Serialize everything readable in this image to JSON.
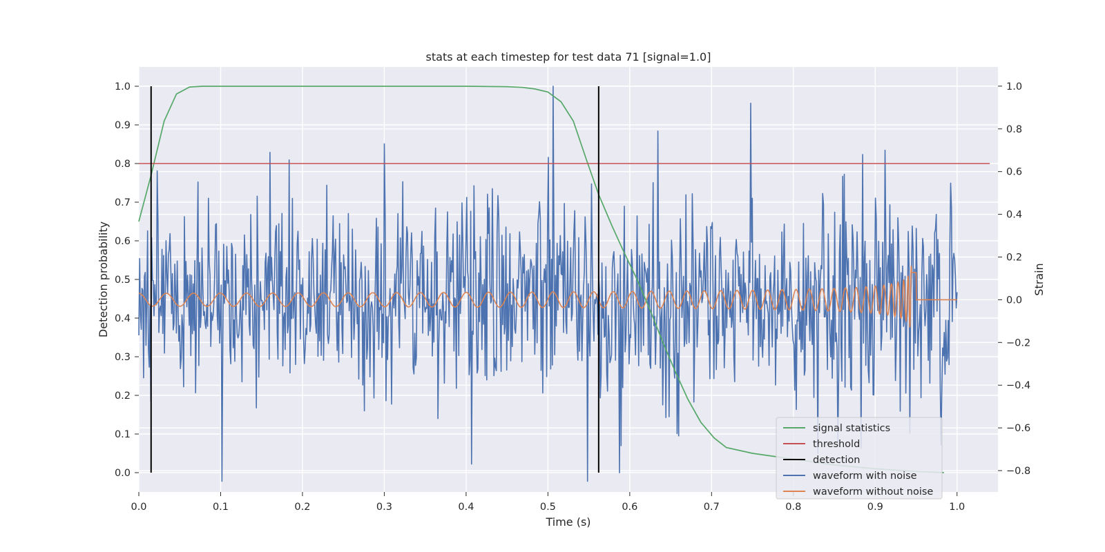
{
  "chart_data": {
    "type": "line",
    "title": "stats at each timestep for test data 71 [signal=1.0]",
    "xlabel": "Time (s)",
    "ylabel_left": "Detection probability",
    "ylabel_right": "Strain",
    "xlim": [
      0.0,
      1.05
    ],
    "ylim_left": [
      -0.05,
      1.05
    ],
    "ylim_right": [
      -0.9,
      1.09
    ],
    "x_ticks": [
      "0.0",
      "0.1",
      "0.2",
      "0.3",
      "0.4",
      "0.5",
      "0.6",
      "0.7",
      "0.8",
      "0.9",
      "1.0"
    ],
    "y_ticks_left": [
      "0.0",
      "0.1",
      "0.2",
      "0.3",
      "0.4",
      "0.5",
      "0.6",
      "0.7",
      "0.8",
      "0.9",
      "1.0"
    ],
    "y_ticks_right": [
      "−0.8",
      "−0.6",
      "−0.4",
      "−0.2",
      "0.0",
      "0.2",
      "0.4",
      "0.6",
      "0.8",
      "1.0"
    ],
    "grid": true,
    "legend_position": "lower-right",
    "series": [
      {
        "name": "signal statistics",
        "axis": "left",
        "color": "#55a868",
        "x": [
          0.0,
          0.015,
          0.031,
          0.046,
          0.062,
          0.078,
          0.093,
          0.109,
          0.125,
          0.2,
          0.3,
          0.4,
          0.45,
          0.469,
          0.484,
          0.5,
          0.516,
          0.531,
          0.547,
          0.562,
          0.578,
          0.593,
          0.609,
          0.625,
          0.64,
          0.656,
          0.671,
          0.687,
          0.703,
          0.718,
          0.75,
          0.8,
          0.85,
          0.9,
          0.95,
          0.984
        ],
        "y": [
          0.65,
          0.77,
          0.91,
          0.98,
          0.998,
          1.0,
          1.0,
          1.0,
          1.0,
          1.0,
          1.0,
          1.0,
          0.999,
          0.997,
          0.993,
          0.985,
          0.96,
          0.91,
          0.81,
          0.72,
          0.64,
          0.57,
          0.5,
          0.42,
          0.34,
          0.26,
          0.19,
          0.13,
          0.09,
          0.065,
          0.05,
          0.035,
          0.02,
          0.01,
          0.003,
          0.0
        ]
      },
      {
        "name": "threshold",
        "axis": "left",
        "color": "#c44e52",
        "x": [
          0.0,
          1.04
        ],
        "y": [
          0.8,
          0.8
        ]
      },
      {
        "name": "detection",
        "axis": "left",
        "color": "#000000",
        "vlines": [
          0.015,
          0.562
        ],
        "ymin": 0.0,
        "ymax": 1.0
      },
      {
        "name": "waveform with noise",
        "axis": "right",
        "color": "#4c72b0",
        "x_start": 0.0,
        "x_end": 1.0,
        "amplitude_std": 0.22,
        "peaks": [
          [
            0.16,
            0.69
          ],
          [
            0.3,
            0.73
          ],
          [
            0.506,
            1.0
          ],
          [
            0.548,
            -0.85
          ],
          [
            0.587,
            -0.81
          ],
          [
            0.634,
            0.79
          ],
          [
            0.748,
            0.92
          ],
          [
            0.102,
            -0.85
          ],
          [
            0.83,
            -0.72
          ],
          [
            0.885,
            0.68
          ],
          [
            0.912,
            0.7
          ],
          [
            0.98,
            -0.68
          ]
        ]
      },
      {
        "name": "waveform without noise",
        "axis": "right",
        "color": "#dd8452",
        "x_start": 0.0,
        "x_end": 1.0,
        "amplitude_start": 0.03,
        "amplitude_peak": 0.16,
        "merger_time": 0.945,
        "cycles": 45
      }
    ]
  }
}
